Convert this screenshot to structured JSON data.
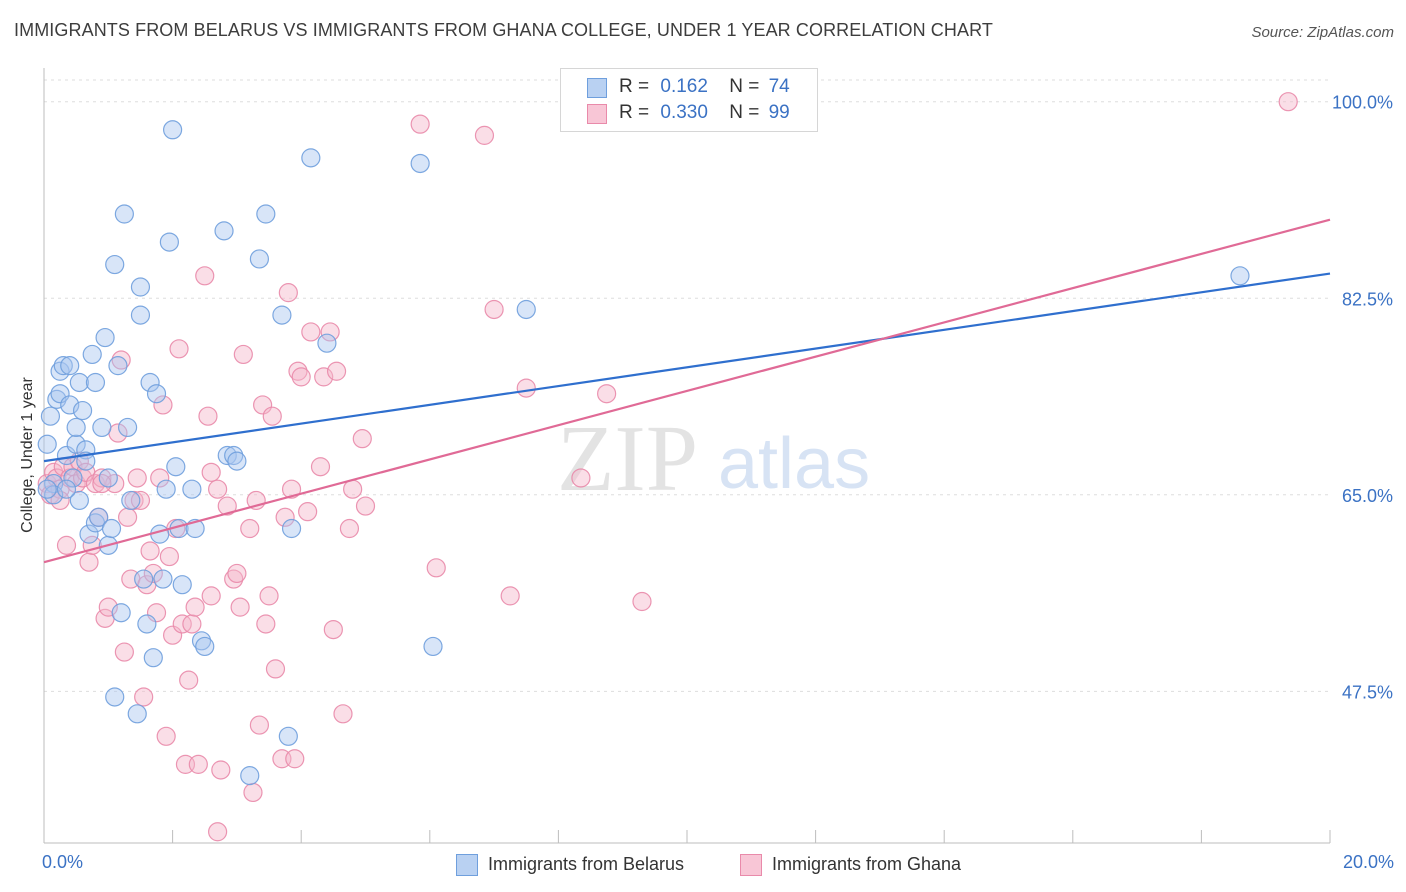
{
  "chart_data": {
    "type": "scatter",
    "title": "IMMIGRANTS FROM BELARUS VS IMMIGRANTS FROM GHANA COLLEGE, UNDER 1 YEAR CORRELATION CHART",
    "source": "Source: ZipAtlas.com",
    "xlabel": "",
    "ylabel": "College, Under 1 year",
    "xlim": [
      0,
      20
    ],
    "ylim": [
      34,
      103
    ],
    "x_tick_labels": [
      "0.0%",
      "20.0%"
    ],
    "y_ticks": [
      47.5,
      65.0,
      82.5,
      100.0
    ],
    "y_tick_labels": [
      "47.5%",
      "65.0%",
      "82.5%",
      "100.0%"
    ],
    "watermark": {
      "zip": "ZIP",
      "atlas": "atlas"
    },
    "colors": {
      "belarus_fill": "#a9c6ef",
      "belarus_stroke": "#6f9fdd",
      "belarus_line": "#2f6fce",
      "ghana_fill": "#f5b5c9",
      "ghana_stroke": "#e98aaa",
      "ghana_line": "#e06a96",
      "tick_label": "#3b72c4",
      "grid": "#dddddd"
    },
    "legend": [
      {
        "r_label": "R =",
        "r_value": "0.162",
        "n_label": "N =",
        "n_value": "74"
      },
      {
        "r_label": "R =",
        "r_value": "0.330",
        "n_label": "N =",
        "n_value": "99"
      }
    ],
    "series": [
      {
        "name": "Immigrants from Belarus",
        "trendline": [
          [
            0,
            68.0
          ],
          [
            20,
            84.7
          ]
        ],
        "points": [
          [
            0.05,
            69.5
          ],
          [
            0.1,
            72.0
          ],
          [
            0.15,
            66.0
          ],
          [
            0.15,
            65.0
          ],
          [
            0.2,
            73.5
          ],
          [
            0.25,
            74.0
          ],
          [
            0.25,
            76.0
          ],
          [
            0.3,
            76.5
          ],
          [
            0.35,
            68.5
          ],
          [
            0.4,
            76.5
          ],
          [
            0.4,
            73.0
          ],
          [
            0.45,
            66.5
          ],
          [
            0.5,
            69.5
          ],
          [
            0.5,
            71.0
          ],
          [
            0.55,
            75.0
          ],
          [
            0.55,
            64.5
          ],
          [
            0.6,
            72.5
          ],
          [
            0.65,
            69.0
          ],
          [
            0.65,
            68.0
          ],
          [
            0.7,
            61.5
          ],
          [
            0.75,
            77.5
          ],
          [
            0.8,
            75.0
          ],
          [
            0.8,
            62.5
          ],
          [
            0.85,
            63.0
          ],
          [
            0.9,
            71.0
          ],
          [
            0.95,
            79.0
          ],
          [
            1.0,
            60.5
          ],
          [
            1.0,
            66.5
          ],
          [
            1.1,
            85.5
          ],
          [
            1.1,
            47.0
          ],
          [
            1.15,
            76.5
          ],
          [
            1.2,
            54.5
          ],
          [
            1.25,
            90.0
          ],
          [
            1.3,
            71.0
          ],
          [
            1.35,
            64.5
          ],
          [
            1.45,
            45.5
          ],
          [
            1.5,
            83.5
          ],
          [
            1.5,
            81.0
          ],
          [
            1.55,
            57.5
          ],
          [
            1.6,
            53.5
          ],
          [
            1.65,
            75.0
          ],
          [
            1.7,
            50.5
          ],
          [
            1.75,
            74.0
          ],
          [
            1.8,
            61.5
          ],
          [
            1.85,
            57.5
          ],
          [
            1.9,
            65.5
          ],
          [
            1.95,
            87.5
          ],
          [
            2.0,
            97.5
          ],
          [
            2.1,
            62.0
          ],
          [
            2.15,
            57.0
          ],
          [
            2.3,
            65.5
          ],
          [
            2.35,
            62.0
          ],
          [
            2.45,
            52.0
          ],
          [
            2.5,
            51.5
          ],
          [
            2.8,
            88.5
          ],
          [
            2.85,
            68.5
          ],
          [
            2.95,
            68.5
          ],
          [
            3.0,
            68.0
          ],
          [
            3.2,
            40.0
          ],
          [
            3.35,
            86.0
          ],
          [
            3.45,
            90.0
          ],
          [
            3.7,
            81.0
          ],
          [
            3.8,
            43.5
          ],
          [
            3.85,
            62.0
          ],
          [
            4.15,
            95.0
          ],
          [
            4.4,
            78.5
          ],
          [
            5.85,
            94.5
          ],
          [
            6.05,
            51.5
          ],
          [
            7.5,
            81.5
          ],
          [
            18.6,
            84.5
          ],
          [
            0.05,
            65.5
          ],
          [
            0.35,
            65.5
          ],
          [
            2.05,
            67.5
          ],
          [
            1.05,
            62.0
          ]
        ]
      },
      {
        "name": "Immigrants from Ghana",
        "trendline": [
          [
            0,
            59.0
          ],
          [
            20,
            89.5
          ]
        ],
        "points": [
          [
            0.05,
            66.0
          ],
          [
            0.1,
            65.0
          ],
          [
            0.15,
            67.0
          ],
          [
            0.2,
            66.5
          ],
          [
            0.25,
            65.5
          ],
          [
            0.3,
            67.5
          ],
          [
            0.35,
            60.5
          ],
          [
            0.4,
            66.5
          ],
          [
            0.45,
            67.5
          ],
          [
            0.5,
            66.0
          ],
          [
            0.55,
            68.0
          ],
          [
            0.6,
            66.5
          ],
          [
            0.65,
            67.0
          ],
          [
            0.7,
            59.0
          ],
          [
            0.75,
            60.5
          ],
          [
            0.8,
            66.0
          ],
          [
            0.85,
            63.0
          ],
          [
            0.9,
            66.5
          ],
          [
            0.95,
            54.0
          ],
          [
            1.0,
            55.0
          ],
          [
            1.1,
            66.0
          ],
          [
            1.15,
            70.5
          ],
          [
            1.2,
            77.0
          ],
          [
            1.25,
            51.0
          ],
          [
            1.3,
            63.0
          ],
          [
            1.35,
            57.5
          ],
          [
            1.4,
            64.5
          ],
          [
            1.45,
            66.5
          ],
          [
            1.5,
            64.5
          ],
          [
            1.55,
            47.0
          ],
          [
            1.6,
            57.0
          ],
          [
            1.65,
            60.0
          ],
          [
            1.7,
            58.0
          ],
          [
            1.75,
            54.5
          ],
          [
            1.8,
            66.5
          ],
          [
            1.85,
            73.0
          ],
          [
            1.9,
            43.5
          ],
          [
            1.95,
            59.5
          ],
          [
            2.0,
            52.5
          ],
          [
            2.05,
            62.0
          ],
          [
            2.1,
            78.0
          ],
          [
            2.15,
            53.5
          ],
          [
            2.2,
            41.0
          ],
          [
            2.25,
            48.5
          ],
          [
            2.3,
            53.5
          ],
          [
            2.35,
            55.0
          ],
          [
            2.4,
            41.0
          ],
          [
            2.5,
            84.5
          ],
          [
            2.55,
            72.0
          ],
          [
            2.6,
            67.0
          ],
          [
            2.7,
            65.5
          ],
          [
            2.75,
            40.5
          ],
          [
            2.85,
            64.0
          ],
          [
            2.95,
            57.5
          ],
          [
            3.0,
            58.0
          ],
          [
            3.05,
            55.0
          ],
          [
            3.1,
            77.5
          ],
          [
            3.2,
            62.0
          ],
          [
            3.25,
            38.5
          ],
          [
            3.3,
            64.5
          ],
          [
            3.4,
            73.0
          ],
          [
            3.45,
            53.5
          ],
          [
            3.5,
            56.0
          ],
          [
            3.55,
            72.0
          ],
          [
            3.6,
            49.5
          ],
          [
            3.7,
            41.5
          ],
          [
            3.75,
            63.0
          ],
          [
            3.8,
            83.0
          ],
          [
            3.85,
            65.5
          ],
          [
            3.9,
            41.5
          ],
          [
            3.95,
            76.0
          ],
          [
            4.0,
            75.5
          ],
          [
            4.1,
            63.5
          ],
          [
            4.15,
            79.5
          ],
          [
            4.3,
            67.5
          ],
          [
            4.35,
            75.5
          ],
          [
            4.45,
            79.5
          ],
          [
            4.5,
            53.0
          ],
          [
            4.55,
            76.0
          ],
          [
            4.65,
            45.5
          ],
          [
            4.75,
            62.0
          ],
          [
            4.8,
            65.5
          ],
          [
            4.95,
            70.0
          ],
          [
            5.0,
            64.0
          ],
          [
            5.85,
            98.0
          ],
          [
            6.1,
            58.5
          ],
          [
            6.85,
            97.0
          ],
          [
            7.0,
            81.5
          ],
          [
            7.25,
            56.0
          ],
          [
            7.5,
            74.5
          ],
          [
            8.35,
            66.5
          ],
          [
            8.75,
            74.0
          ],
          [
            9.3,
            55.5
          ],
          [
            2.7,
            35.0
          ],
          [
            3.35,
            44.5
          ],
          [
            19.35,
            100.0
          ],
          [
            0.25,
            64.5
          ],
          [
            0.9,
            66.0
          ],
          [
            2.6,
            56.0
          ]
        ]
      }
    ]
  },
  "bottom_legend": [
    {
      "label": "Immigrants from Belarus"
    },
    {
      "label": "Immigrants from Ghana"
    }
  ]
}
